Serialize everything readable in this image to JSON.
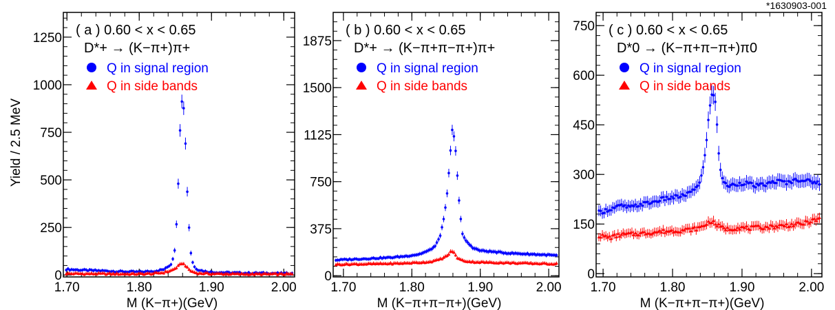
{
  "figure_id": "*1630903-001",
  "ylabel": "Yield / 2.5 MeV",
  "colors": {
    "signal": "#0000ff",
    "sideband": "#ff0000",
    "axis": "#000000"
  },
  "chart_data": [
    {
      "type": "scatter",
      "panel_label": "( a )",
      "range_text": "0.60 < x < 0.65",
      "decay": "D*+ → (K−π+)π+",
      "xlabel": "M (K−π+)(GeV)",
      "xlim": [
        1.695,
        2.015
      ],
      "ylim": [
        -10,
        1380
      ],
      "xticks": [
        1.7,
        1.8,
        1.9,
        2.0
      ],
      "xtick_labels": [
        "1.70",
        "1.80",
        "1.90",
        "2.00"
      ],
      "yticks": [
        0,
        250,
        500,
        750,
        1000,
        1250
      ],
      "ytick_labels": [
        "0",
        "250",
        "500",
        "750",
        "1000",
        "1250"
      ],
      "legend": [
        "Q in signal region",
        "Q in side bands"
      ],
      "legend_position": "top-left",
      "series": [
        {
          "name": "Q in signal region",
          "marker": "circle",
          "x": [
            1.7,
            1.725,
            1.75,
            1.775,
            1.8,
            1.82,
            1.835,
            1.845,
            1.85,
            1.853,
            1.855,
            1.857,
            1.859,
            1.861,
            1.863,
            1.865,
            1.867,
            1.869,
            1.872,
            1.876,
            1.88,
            1.89,
            1.9,
            1.925,
            1.95,
            1.975,
            2.0,
            2.012
          ],
          "y": [
            30,
            25,
            22,
            18,
            16,
            20,
            30,
            60,
            150,
            390,
            565,
            830,
            915,
            900,
            820,
            560,
            400,
            250,
            90,
            45,
            30,
            20,
            15,
            12,
            10,
            10,
            8,
            8
          ]
        },
        {
          "name": "Q in side bands",
          "marker": "triangle",
          "x": [
            1.7,
            1.725,
            1.75,
            1.775,
            1.8,
            1.82,
            1.835,
            1.845,
            1.85,
            1.855,
            1.859,
            1.863,
            1.867,
            1.872,
            1.88,
            1.9,
            1.925,
            1.95,
            1.975,
            2.0,
            2.012
          ],
          "y": [
            8,
            7,
            7,
            6,
            6,
            8,
            14,
            25,
            35,
            50,
            62,
            55,
            35,
            20,
            10,
            7,
            6,
            5,
            5,
            5,
            5
          ]
        }
      ]
    },
    {
      "type": "scatter",
      "panel_label": "( b )",
      "range_text": "0.60 < x < 0.65",
      "decay": "D*+ → (K−π+π−π+)π+",
      "xlabel": "M (K−π+π−π+)(GeV)",
      "xlim": [
        1.685,
        2.015
      ],
      "ylim": [
        -10,
        2100
      ],
      "xticks": [
        1.7,
        1.8,
        1.9,
        2.0
      ],
      "xtick_labels": [
        "1.70",
        "1.80",
        "1.90",
        "2.00"
      ],
      "yticks": [
        0,
        375,
        750,
        1125,
        1500,
        1875
      ],
      "ytick_labels": [
        "0",
        "375",
        "750",
        "1125",
        "1500",
        "1875"
      ],
      "legend": [
        "Q in signal region",
        "Q in side bands"
      ],
      "legend_position": "top-left",
      "series": [
        {
          "name": "Q in signal region",
          "marker": "circle",
          "x": [
            1.69,
            1.71,
            1.73,
            1.75,
            1.77,
            1.79,
            1.81,
            1.825,
            1.835,
            1.842,
            1.847,
            1.851,
            1.854,
            1.857,
            1.859,
            1.861,
            1.864,
            1.867,
            1.87,
            1.874,
            1.88,
            1.89,
            1.9,
            1.92,
            1.94,
            1.96,
            1.98,
            2.0,
            2.012
          ],
          "y": [
            125,
            130,
            135,
            140,
            145,
            155,
            170,
            200,
            240,
            330,
            460,
            620,
            820,
            1030,
            1160,
            1130,
            1000,
            760,
            520,
            330,
            270,
            220,
            200,
            190,
            180,
            175,
            170,
            165,
            160
          ]
        },
        {
          "name": "Q in side bands",
          "marker": "triangle",
          "x": [
            1.69,
            1.71,
            1.73,
            1.75,
            1.77,
            1.79,
            1.81,
            1.825,
            1.835,
            1.845,
            1.852,
            1.858,
            1.862,
            1.866,
            1.872,
            1.88,
            1.89,
            1.9,
            1.92,
            1.94,
            1.96,
            1.98,
            2.0,
            2.012
          ],
          "y": [
            90,
            92,
            93,
            95,
            97,
            100,
            105,
            110,
            120,
            140,
            160,
            200,
            180,
            145,
            125,
            115,
            110,
            108,
            105,
            103,
            100,
            98,
            95,
            95
          ]
        }
      ]
    },
    {
      "type": "scatter",
      "panel_label": "( c )",
      "range_text": "0.60 < x < 0.65",
      "decay": "D*0 → (K−π+π−π+)π0",
      "xlabel": "M (K−π+π−π+)(GeV)",
      "xlim": [
        1.69,
        2.015
      ],
      "ylim": [
        -10,
        790
      ],
      "xticks": [
        1.7,
        1.8,
        1.9,
        2.0
      ],
      "xtick_labels": [
        "1.70",
        "1.80",
        "1.90",
        "2.00"
      ],
      "yticks": [
        0,
        150,
        300,
        450,
        600,
        750
      ],
      "ytick_labels": [
        "0",
        "150",
        "300",
        "450",
        "600",
        "750"
      ],
      "legend": [
        "Q in signal region",
        "Q in side bands"
      ],
      "legend_position": "top-left",
      "series": [
        {
          "name": "Q in signal region",
          "marker": "circle",
          "x": [
            1.695,
            1.71,
            1.725,
            1.74,
            1.755,
            1.77,
            1.785,
            1.8,
            1.815,
            1.83,
            1.84,
            1.845,
            1.849,
            1.852,
            1.855,
            1.858,
            1.861,
            1.864,
            1.867,
            1.87,
            1.875,
            1.882,
            1.89,
            1.905,
            1.92,
            1.935,
            1.95,
            1.965,
            1.98,
            1.995,
            2.01
          ],
          "y": [
            185,
            195,
            205,
            200,
            210,
            215,
            225,
            230,
            235,
            250,
            280,
            330,
            400,
            480,
            530,
            545,
            530,
            450,
            350,
            300,
            270,
            265,
            270,
            275,
            265,
            270,
            280,
            275,
            285,
            280,
            275
          ]
        },
        {
          "name": "Q in side bands",
          "marker": "triangle",
          "x": [
            1.695,
            1.71,
            1.725,
            1.74,
            1.755,
            1.77,
            1.785,
            1.8,
            1.815,
            1.83,
            1.84,
            1.848,
            1.855,
            1.862,
            1.87,
            1.88,
            1.895,
            1.91,
            1.925,
            1.94,
            1.955,
            1.97,
            1.985,
            2.0,
            2.01
          ],
          "y": [
            115,
            110,
            118,
            120,
            122,
            125,
            128,
            130,
            132,
            135,
            140,
            150,
            160,
            150,
            140,
            135,
            140,
            138,
            140,
            142,
            145,
            148,
            150,
            160,
            165
          ]
        }
      ]
    }
  ]
}
